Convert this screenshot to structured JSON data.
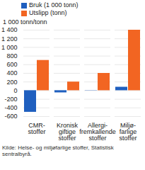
{
  "chart_data": {
    "type": "bar",
    "y_label": "1 000 tonn/tonn",
    "caption": "Kilde: Helse- og miljøfarlige stoffer, Statistisk sentralbyrå.",
    "categories": [
      "CMR-\nstoffer",
      "Kronisk\ngiftige\nstoffer",
      "Allergi-\nfremkallende\nstoffer",
      "Miljø-\nfarlige\nstoffer"
    ],
    "series": [
      {
        "name": "Bruk (1 000 tonn)",
        "color": "#1f5fbf",
        "values": [
          -500,
          -50,
          5,
          80
        ]
      },
      {
        "name": "Utslipp (tonn)",
        "color": "#f26522",
        "values": [
          700,
          200,
          400,
          1400
        ]
      }
    ],
    "ylim": [
      -600,
      1400
    ],
    "yticks": [
      -600,
      -400,
      -200,
      0,
      200,
      400,
      600,
      800,
      {
        "value": 1000,
        "label": "1 000"
      },
      {
        "value": 1200,
        "label": "1 200"
      },
      {
        "value": 1400,
        "label": "1 400"
      }
    ],
    "grid": true,
    "legend": "top"
  }
}
